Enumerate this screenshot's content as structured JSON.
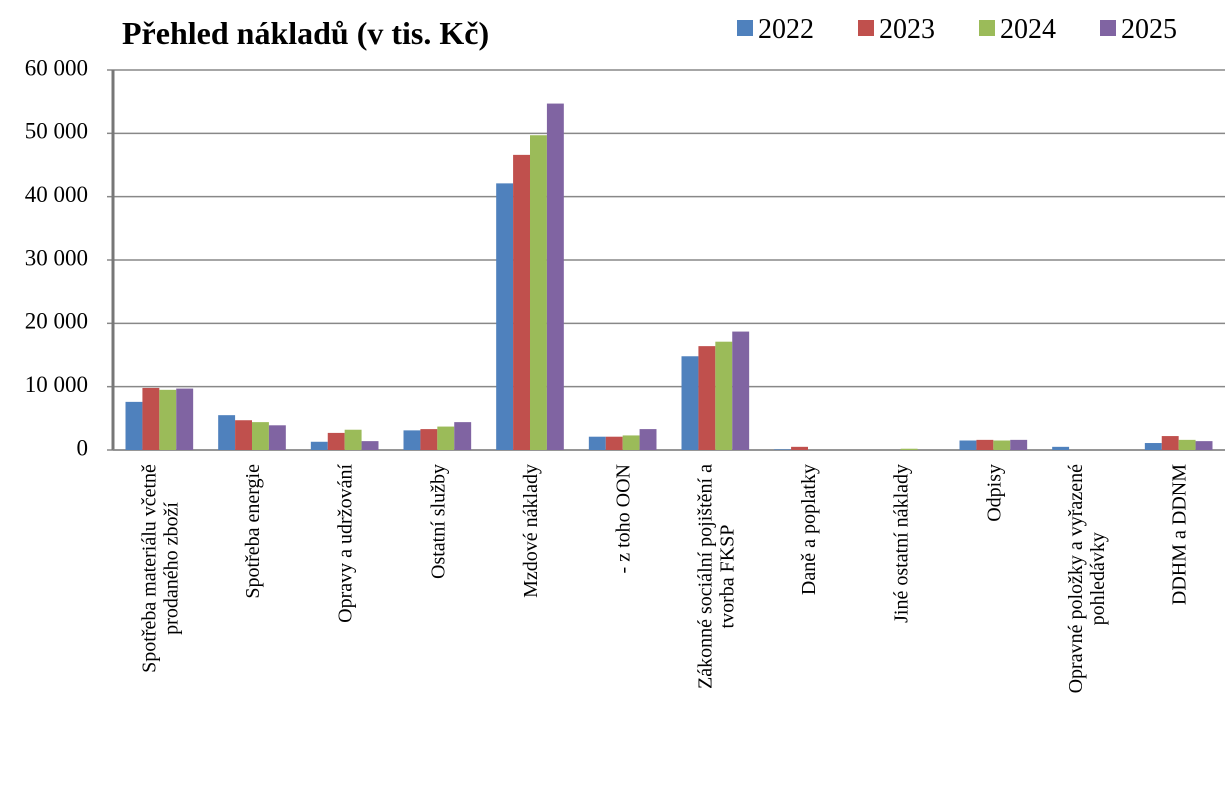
{
  "chart_data": {
    "type": "bar",
    "title": "Přehled nákladů (v tis. Kč)",
    "categories": [
      "Spotřeba materiálu včetně\nprodaného zboží",
      "Spotřeba energie",
      "Opravy a udržování",
      "Ostatní služby",
      "Mzdové náklady",
      "- z toho OON",
      "Zákonné sociální pojištění a\ntvorba FKSP",
      "Daně a poplatky",
      "Jiné ostatní náklady",
      "Odpisy",
      "Opravné položky a vyřazené\npohledávky",
      "DDHM a DDNM"
    ],
    "series": [
      {
        "name": "2022",
        "color": "#4f81bd",
        "values": [
          7600,
          5500,
          1300,
          3100,
          42100,
          2100,
          14800,
          100,
          0,
          1500,
          500,
          1100
        ]
      },
      {
        "name": "2023",
        "color": "#c0504d",
        "values": [
          9800,
          4700,
          2700,
          3300,
          46600,
          2100,
          16400,
          500,
          0,
          1600,
          0,
          2200
        ]
      },
      {
        "name": "2024",
        "color": "#9bbb59",
        "values": [
          9500,
          4400,
          3200,
          3700,
          49700,
          2300,
          17100,
          0,
          200,
          1500,
          0,
          1600
        ]
      },
      {
        "name": "2025",
        "color": "#8064a2",
        "values": [
          9700,
          3900,
          1400,
          4400,
          54700,
          3300,
          18700,
          0,
          0,
          1600,
          0,
          1400
        ]
      }
    ],
    "ylim": [
      0,
      60000
    ],
    "yticks": [
      0,
      {
        "value": 10000,
        "label": "10 000"
      },
      {
        "value": 20000,
        "label": "20 000"
      },
      {
        "value": 30000,
        "label": "30 000"
      },
      {
        "value": 40000,
        "label": "40 000"
      },
      {
        "value": 50000,
        "label": "50 000"
      },
      {
        "value": 60000,
        "label": "60 000"
      }
    ],
    "grid": true,
    "legend": "top-right"
  }
}
